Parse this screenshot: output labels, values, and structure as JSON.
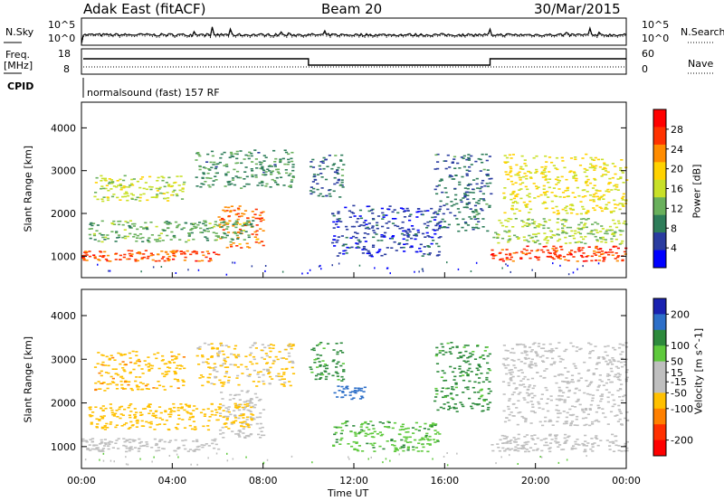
{
  "header": {
    "station": "Adak East (fitACF)",
    "beam": "Beam 20",
    "date": "30/Mar/2015"
  },
  "noise_panel": {
    "left_label": "N.Sky",
    "right_label": "N.Search",
    "left_ticks": [
      "10^5",
      "10^0"
    ],
    "right_ticks": [
      "10^5",
      "10^0"
    ]
  },
  "freq_panel": {
    "left_label": "Freq.",
    "left_unit": "[MHz]",
    "right_label": "Nave",
    "left_ticks": [
      "18",
      "8"
    ],
    "right_ticks": [
      "60",
      "0"
    ]
  },
  "cpid": {
    "label": "CPID",
    "text": "normalsound (fast) 157 RF"
  },
  "colors": {
    "power_scale": [
      "#0000ff",
      "#2a3ca0",
      "#2e7d5a",
      "#69b05c",
      "#c8e028",
      "#ffd200",
      "#ff8c00",
      "#ff3200",
      "#ff0000"
    ],
    "velocity_scale": [
      "#1a22b0",
      "#2d6fc8",
      "#2d8a3c",
      "#5ec93c",
      "#bfbfbf",
      "#bfbfbf",
      "#ffc000",
      "#ff8000",
      "#ff3000",
      "#ff0000"
    ]
  },
  "chart_data": [
    {
      "type": "heatmap",
      "name_as_printed": "Power",
      "ylabel": "Slant Range [km]",
      "colorbar_label": "Power [dB]",
      "colorbar_ticks": [
        28,
        24,
        20,
        16,
        12,
        8,
        4
      ],
      "colorbar_range": [
        0,
        32
      ],
      "xlim": [
        "00:00",
        "24:00"
      ],
      "ylim": [
        500,
        4600
      ],
      "yticks": [
        1000,
        2000,
        3000,
        4000
      ],
      "regions": [
        {
          "t0": 0.0,
          "t1": 6.0,
          "r0": 900,
          "r1": 1150,
          "level": 26
        },
        {
          "t0": 6.0,
          "t1": 8.0,
          "r0": 1200,
          "r1": 2200,
          "level": 24
        },
        {
          "t0": 0.3,
          "t1": 7.5,
          "r0": 1350,
          "r1": 1850,
          "level": 12
        },
        {
          "t0": 0.5,
          "t1": 4.5,
          "r0": 2300,
          "r1": 2900,
          "level": 16
        },
        {
          "t0": 5.0,
          "t1": 9.3,
          "r0": 2600,
          "r1": 3500,
          "level": 10
        },
        {
          "t0": 10.0,
          "t1": 11.5,
          "r0": 2400,
          "r1": 3400,
          "level": 8
        },
        {
          "t0": 11.0,
          "t1": 15.8,
          "r0": 1000,
          "r1": 2200,
          "level": 5
        },
        {
          "t0": 15.5,
          "t1": 18.0,
          "r0": 1600,
          "r1": 3400,
          "level": 8
        },
        {
          "t0": 18.0,
          "t1": 24.0,
          "r0": 900,
          "r1": 1250,
          "level": 27
        },
        {
          "t0": 18.0,
          "t1": 24.0,
          "r0": 1300,
          "r1": 1900,
          "level": 14
        },
        {
          "t0": 18.5,
          "t1": 24.0,
          "r0": 2000,
          "r1": 3400,
          "level": 18
        }
      ]
    },
    {
      "type": "heatmap",
      "name_as_printed": "Velocity",
      "ylabel": "Slant Range [km]",
      "xlabel": "Time UT",
      "colorbar_label": "Velocity [m s^-1]",
      "colorbar_ticks": [
        200,
        100,
        50,
        15,
        -15,
        -50,
        -100,
        -200
      ],
      "colorbar_range": [
        -250,
        250
      ],
      "xlim": [
        "00:00",
        "24:00"
      ],
      "xticks": [
        "00:00",
        "04:00",
        "08:00",
        "12:00",
        "16:00",
        "20:00",
        "00:00"
      ],
      "ylim": [
        500,
        4600
      ],
      "yticks": [
        1000,
        2000,
        3000,
        4000
      ],
      "regions": [
        {
          "t0": 0.0,
          "t1": 6.0,
          "r0": 900,
          "r1": 1200,
          "level": 0
        },
        {
          "t0": 6.0,
          "t1": 8.0,
          "r0": 1200,
          "r1": 2300,
          "level": 0
        },
        {
          "t0": 0.3,
          "t1": 7.5,
          "r0": 1400,
          "r1": 2000,
          "level": -30
        },
        {
          "t0": 0.5,
          "t1": 4.5,
          "r0": 2300,
          "r1": 3200,
          "level": -40
        },
        {
          "t0": 5.0,
          "t1": 9.3,
          "r0": 2400,
          "r1": 3400,
          "level": -20
        },
        {
          "t0": 10.0,
          "t1": 11.5,
          "r0": 2500,
          "r1": 3400,
          "level": 60
        },
        {
          "t0": 11.0,
          "t1": 12.5,
          "r0": 2100,
          "r1": 2400,
          "level": 120
        },
        {
          "t0": 11.0,
          "t1": 15.8,
          "r0": 900,
          "r1": 1600,
          "level": 40
        },
        {
          "t0": 15.5,
          "t1": 18.0,
          "r0": 1800,
          "r1": 3400,
          "level": 60
        },
        {
          "t0": 18.0,
          "t1": 24.0,
          "r0": 900,
          "r1": 1300,
          "level": 0
        },
        {
          "t0": 18.5,
          "t1": 24.0,
          "r0": 1500,
          "r1": 3400,
          "level": 0
        }
      ]
    }
  ]
}
